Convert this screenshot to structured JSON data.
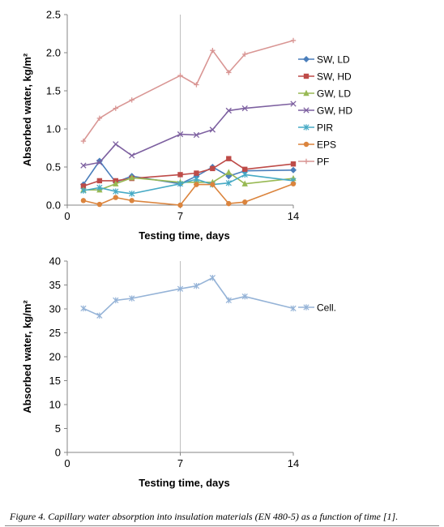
{
  "caption": "Figure 4. Capillary water absorption into insulation materials (EN 480-5) as a function of time [1].",
  "chart_data": [
    {
      "type": "line",
      "xlabel": "Testing time, days",
      "ylabel": "Absorbed water, kg/m²",
      "xlim": [
        0,
        14
      ],
      "ylim": [
        0,
        2.5
      ],
      "xticks": [
        "0",
        "7",
        "14"
      ],
      "yticks": [
        "0.0",
        "0.5",
        "1.0",
        "1.5",
        "2.0",
        "2.5"
      ],
      "grid": "vertical line at x=7 only",
      "legend_position": "right",
      "series": [
        {
          "name": "SW, LD",
          "color": "#4a7ebb",
          "marker": "diamond",
          "x": [
            1,
            2,
            3,
            4,
            7,
            8,
            9,
            10,
            11,
            14
          ],
          "y": [
            0.27,
            0.58,
            0.3,
            0.38,
            0.28,
            0.38,
            0.5,
            0.38,
            0.45,
            0.46
          ]
        },
        {
          "name": "SW, HD",
          "color": "#be4b48",
          "marker": "square",
          "x": [
            1,
            2,
            3,
            4,
            7,
            8,
            9,
            10,
            11,
            14
          ],
          "y": [
            0.25,
            0.32,
            0.32,
            0.35,
            0.4,
            0.42,
            0.48,
            0.61,
            0.47,
            0.54
          ]
        },
        {
          "name": "GW, LD",
          "color": "#98b954",
          "marker": "triangle",
          "x": [
            1,
            2,
            3,
            4,
            7,
            8,
            9,
            10,
            11,
            14
          ],
          "y": [
            0.2,
            0.2,
            0.28,
            0.36,
            0.3,
            0.3,
            0.3,
            0.43,
            0.28,
            0.35
          ]
        },
        {
          "name": "GW, HD",
          "color": "#7d60a0",
          "marker": "x",
          "x": [
            1,
            2,
            3,
            4,
            7,
            8,
            9,
            10,
            11,
            14
          ],
          "y": [
            0.52,
            0.56,
            0.8,
            0.65,
            0.93,
            0.92,
            0.99,
            1.24,
            1.27,
            1.33
          ]
        },
        {
          "name": "PIR",
          "color": "#46aac5",
          "marker": "star",
          "x": [
            1,
            2,
            3,
            4,
            7,
            8,
            9,
            10,
            11,
            14
          ],
          "y": [
            0.19,
            0.23,
            0.18,
            0.15,
            0.28,
            0.34,
            0.27,
            0.29,
            0.4,
            0.32
          ]
        },
        {
          "name": "EPS",
          "color": "#db843d",
          "marker": "circle",
          "x": [
            1,
            2,
            3,
            4,
            7,
            8,
            9,
            10,
            11,
            14
          ],
          "y": [
            0.06,
            0.01,
            0.1,
            0.06,
            0.0,
            0.27,
            0.27,
            0.02,
            0.04,
            0.28
          ]
        },
        {
          "name": "PF",
          "color": "#d99694",
          "marker": "plus",
          "x": [
            1,
            2,
            3,
            4,
            7,
            8,
            9,
            10,
            11,
            14
          ],
          "y": [
            0.84,
            1.14,
            1.27,
            1.38,
            1.7,
            1.58,
            2.03,
            1.74,
            1.98,
            2.16
          ]
        }
      ]
    },
    {
      "type": "line",
      "xlabel": "Testing time, days",
      "ylabel": "Absorbed water, kg/m²",
      "xlim": [
        0,
        14
      ],
      "ylim": [
        0,
        40
      ],
      "xticks": [
        "0",
        "7",
        "14"
      ],
      "yticks": [
        "0",
        "5",
        "10",
        "15",
        "20",
        "25",
        "30",
        "35",
        "40"
      ],
      "grid": "vertical line at x=7 only",
      "legend_position": "right",
      "series": [
        {
          "name": "Cell.",
          "color": "#95b3d7",
          "marker": "star",
          "x": [
            1,
            2,
            3,
            4,
            7,
            8,
            9,
            10,
            11,
            14
          ],
          "y": [
            30.1,
            28.6,
            31.8,
            32.2,
            34.2,
            34.8,
            36.5,
            31.8,
            32.6,
            30.1
          ]
        }
      ]
    }
  ]
}
